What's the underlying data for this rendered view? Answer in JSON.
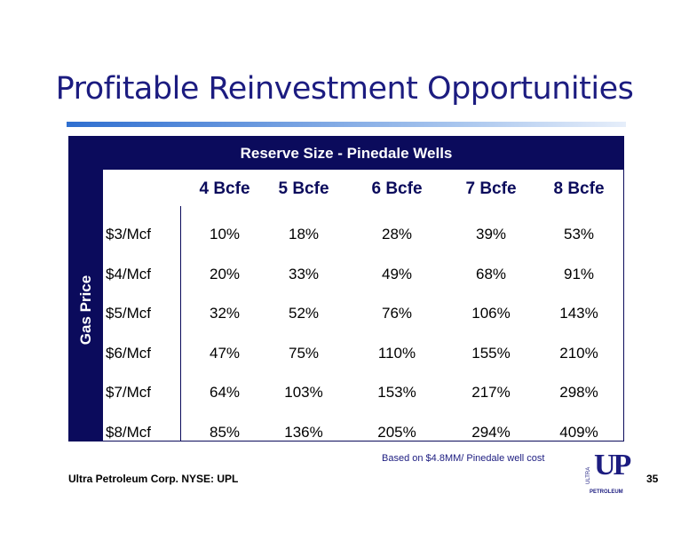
{
  "title": "Profitable Reinvestment Opportunities",
  "table": {
    "header": "Reserve Size - Pinedale Wells",
    "side_label": "Gas Price",
    "columns": [
      "4 Bcfe",
      "5 Bcfe",
      "6 Bcfe",
      "7 Bcfe",
      "8 Bcfe"
    ],
    "rows": [
      {
        "label": "$3/Mcf",
        "values": [
          "10%",
          "18%",
          "28%",
          "39%",
          "53%"
        ]
      },
      {
        "label": "$4/Mcf",
        "values": [
          "20%",
          "33%",
          "49%",
          "68%",
          "91%"
        ]
      },
      {
        "label": "$5/Mcf",
        "values": [
          "32%",
          "52%",
          "76%",
          "106%",
          "143%"
        ]
      },
      {
        "label": "$6/Mcf",
        "values": [
          "47%",
          "75%",
          "110%",
          "155%",
          "210%"
        ]
      },
      {
        "label": "$7/Mcf",
        "values": [
          "64%",
          "103%",
          "153%",
          "217%",
          "298%"
        ]
      },
      {
        "label": "$8/Mcf",
        "values": [
          "85%",
          "136%",
          "205%",
          "294%",
          "409%"
        ]
      }
    ]
  },
  "footnote": "Based on $4.8MM/ Pinedale well cost",
  "footer": {
    "company": "Ultra Petroleum Corp. NYSE: UPL",
    "page": "35"
  },
  "logo": {
    "top": "ULTRA",
    "main": "UP",
    "bottom": "PETROLEUM"
  }
}
